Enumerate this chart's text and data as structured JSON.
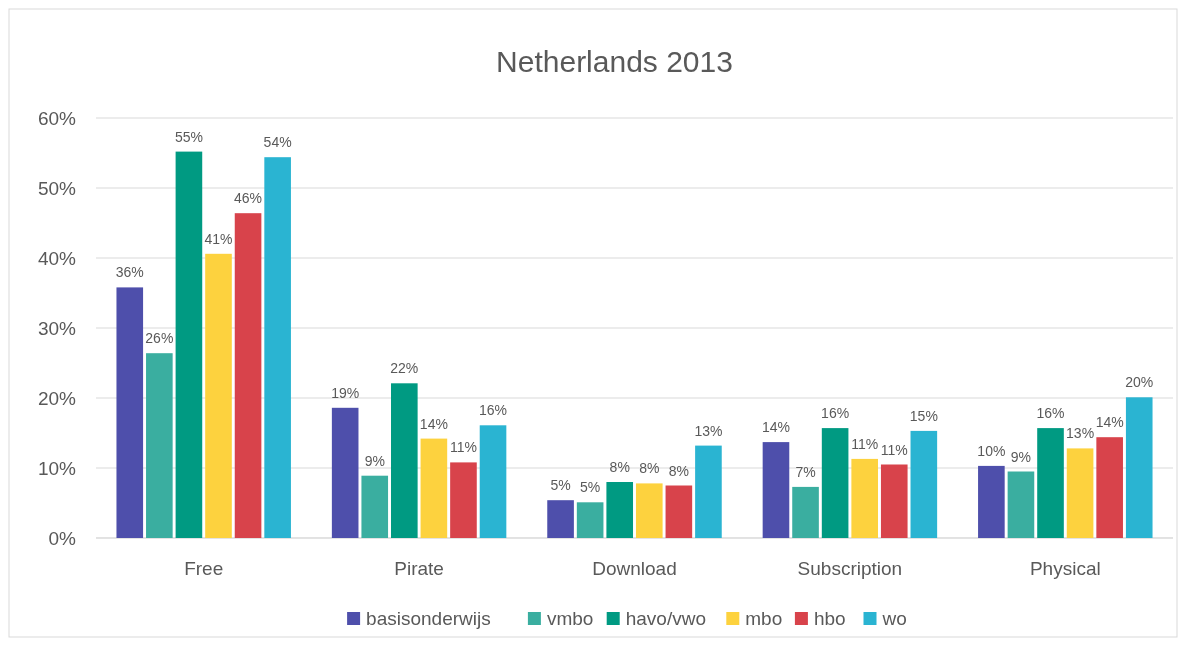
{
  "chart_data": {
    "type": "bar",
    "title": "Netherlands 2013",
    "categories": [
      "Free",
      "Pirate",
      "Download",
      "Subscription",
      "Physical"
    ],
    "series": [
      {
        "name": "basisonderwijs",
        "color": "#4e4fab",
        "values": [
          35.8,
          18.6,
          5.4,
          13.7,
          10.3
        ],
        "value_labels": [
          "36%",
          "19%",
          "5%",
          "14%",
          "10%"
        ]
      },
      {
        "name": "vmbo",
        "color": "#3aaea0",
        "values": [
          26.4,
          8.9,
          5.1,
          7.3,
          9.5
        ],
        "value_labels": [
          "26%",
          "9%",
          "5%",
          "7%",
          "9%"
        ]
      },
      {
        "name": "havo/vwo",
        "color": "#009a82",
        "values": [
          55.2,
          22.1,
          8.0,
          15.7,
          15.7
        ],
        "value_labels": [
          "55%",
          "22%",
          "8%",
          "16%",
          "16%"
        ]
      },
      {
        "name": "mbo",
        "color": "#fdd23e",
        "values": [
          40.6,
          14.2,
          7.8,
          11.3,
          12.8
        ],
        "value_labels": [
          "41%",
          "14%",
          "8%",
          "11%",
          "13%"
        ]
      },
      {
        "name": "hbo",
        "color": "#d8434b",
        "values": [
          46.4,
          10.8,
          7.5,
          10.5,
          14.4
        ],
        "value_labels": [
          "46%",
          "11%",
          "8%",
          "11%",
          "14%"
        ]
      },
      {
        "name": "wo",
        "color": "#2ab4d2",
        "values": [
          54.4,
          16.1,
          13.2,
          15.3,
          20.1
        ],
        "value_labels": [
          "54%",
          "16%",
          "13%",
          "15%",
          "20%"
        ]
      }
    ],
    "ylim": [
      0,
      60
    ],
    "yticks": [
      {
        "value": 0,
        "label": "0%"
      },
      {
        "value": 10,
        "label": "10%"
      },
      {
        "value": 20,
        "label": "20%"
      },
      {
        "value": 30,
        "label": "30%"
      },
      {
        "value": 40,
        "label": "40%"
      },
      {
        "value": 50,
        "label": "50%"
      },
      {
        "value": 60,
        "label": "60%"
      }
    ],
    "grid": "y",
    "legend": "bottom"
  }
}
